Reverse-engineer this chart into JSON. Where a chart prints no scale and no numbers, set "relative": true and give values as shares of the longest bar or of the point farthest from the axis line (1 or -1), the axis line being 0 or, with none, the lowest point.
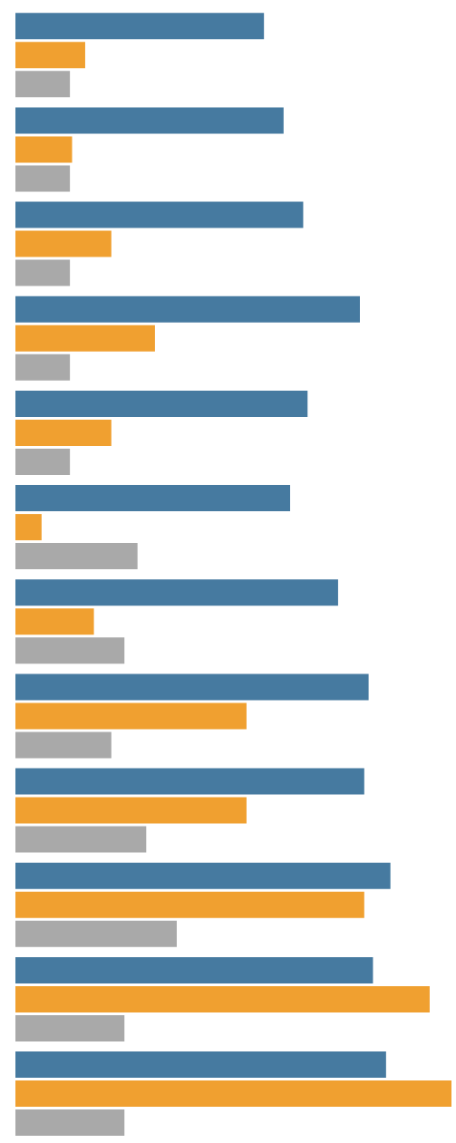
{
  "chart_data": {
    "type": "bar",
    "orientation": "horizontal",
    "relative": true,
    "categories": [
      null,
      null,
      null,
      null,
      null,
      null,
      null,
      null,
      null,
      null,
      null,
      null
    ],
    "series": [
      {
        "color": "#467aa0",
        "values": [
          0.57,
          0.615,
          0.66,
          0.79,
          0.67,
          0.63,
          0.74,
          0.81,
          0.8,
          0.86,
          0.82,
          0.85
        ]
      },
      {
        "color": "#f0a030",
        "values": [
          0.16,
          0.13,
          0.22,
          0.32,
          0.22,
          0.06,
          0.18,
          0.53,
          0.53,
          0.8,
          0.95,
          1
        ]
      },
      {
        "color": "#a9a9a9",
        "values": [
          0.125,
          0.125,
          0.125,
          0.125,
          0.125,
          0.28,
          0.25,
          0.22,
          0.3,
          0.37,
          0.25,
          0.25
        ]
      }
    ]
  }
}
